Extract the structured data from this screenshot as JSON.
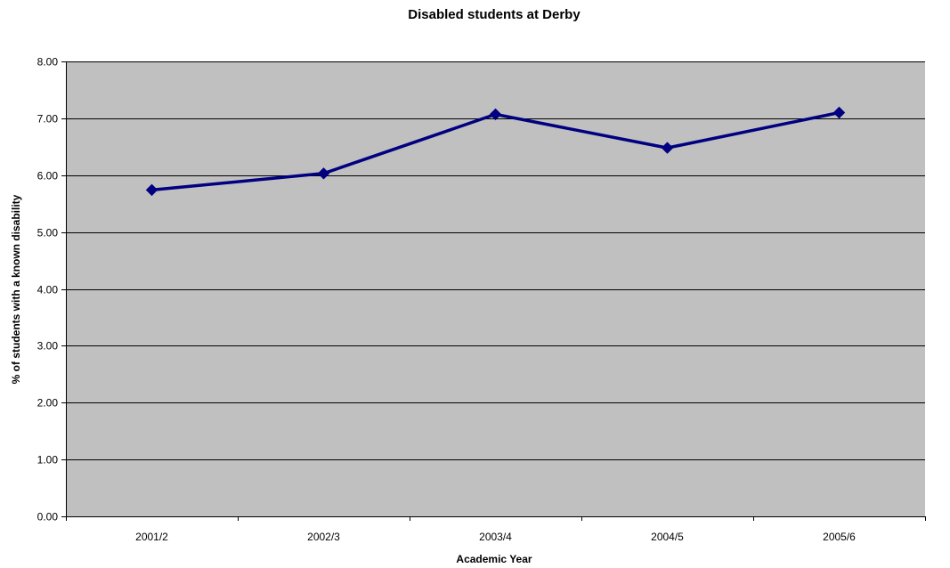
{
  "chart_data": {
    "type": "line",
    "title": "Disabled students at Derby",
    "xlabel": "Academic Year",
    "ylabel": "% of students with a known disability",
    "categories": [
      "2001/2",
      "2002/3",
      "2003/4",
      "2004/5",
      "2005/6"
    ],
    "series": [
      {
        "values": [
          5.74,
          6.03,
          7.07,
          6.48,
          7.1
        ]
      }
    ],
    "ylim": [
      0,
      8
    ],
    "yticks": [
      0,
      1,
      2,
      3,
      4,
      5,
      6,
      7,
      8
    ],
    "ytick_labels": [
      "0.00",
      "1.00",
      "2.00",
      "3.00",
      "4.00",
      "5.00",
      "6.00",
      "7.00",
      "8.00"
    ],
    "grid": true,
    "legend": "none",
    "marker": "diamond",
    "colors": {
      "plot_background": "#C0C0C0",
      "line": "#000080",
      "gridline": "#000000",
      "axis": "#000000"
    }
  }
}
